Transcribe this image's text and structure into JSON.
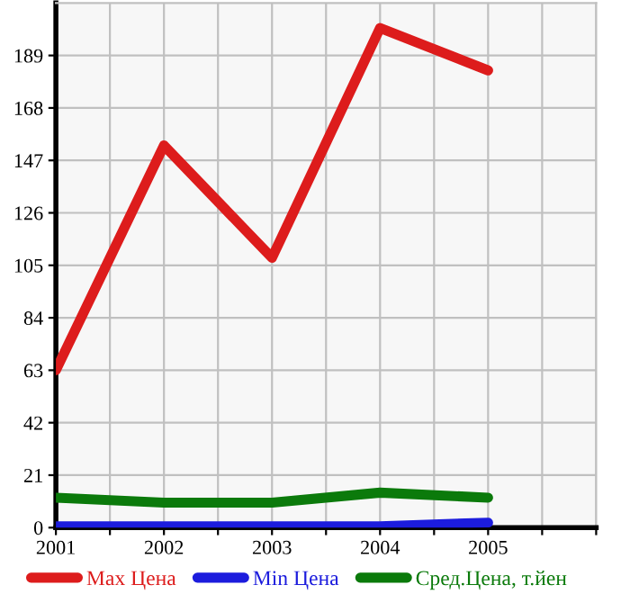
{
  "chart_data": {
    "type": "line",
    "x": [
      2001,
      2002,
      2003,
      2004,
      2005
    ],
    "series": [
      {
        "name": "Max Цена",
        "color": "#dd1c1c",
        "values": [
          63,
          153,
          108,
          200,
          183
        ]
      },
      {
        "name": "Min Цена",
        "color": "#1c1cdd",
        "values": [
          0.5,
          0.5,
          0.5,
          0.5,
          2
        ]
      },
      {
        "name": "Сред.Цена, т.йен",
        "color": "#0b7a0b",
        "values": [
          12,
          10,
          10,
          14,
          12
        ]
      }
    ],
    "xlim": [
      2001,
      2006
    ],
    "xticks": [
      2001,
      {
        "value": 2001.5,
        "label": null
      },
      2002,
      {
        "value": 2002.5,
        "label": null
      },
      2003,
      {
        "value": 2003.5,
        "label": null
      },
      2004,
      {
        "value": 2004.5,
        "label": null
      },
      2005,
      {
        "value": 2005.5,
        "label": null
      },
      {
        "value": 2006,
        "label": null
      }
    ],
    "ylim": [
      0,
      210
    ],
    "yticks": [
      0,
      21,
      42,
      63,
      84,
      105,
      126,
      147,
      168,
      189
    ],
    "grid": true,
    "legend": "bottom",
    "marker": "none",
    "line_style": "solid"
  }
}
